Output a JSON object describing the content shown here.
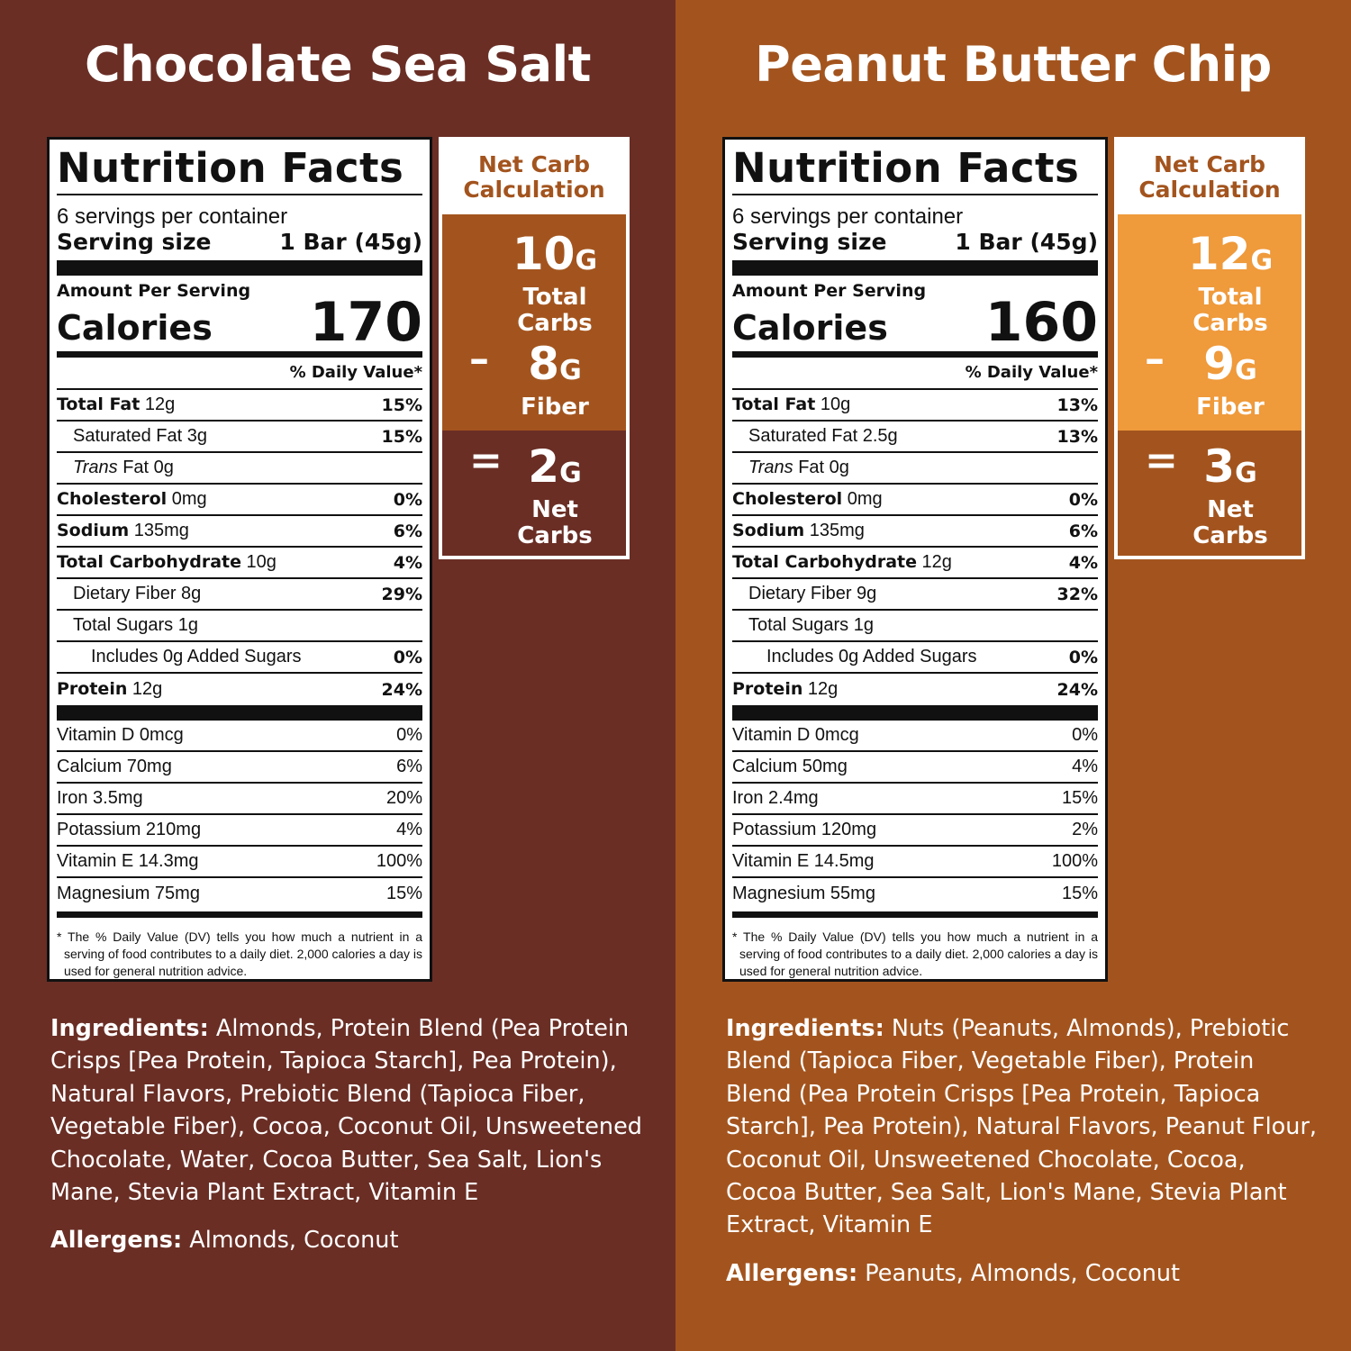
{
  "colors": {
    "dark_brown": "#6A2E25",
    "medium_brown": "#A3541E",
    "orange": "#EF9A3B"
  },
  "products": [
    {
      "name": "Chocolate Sea Salt",
      "bg": "#6A2E25",
      "label": {
        "title": "Nutrition Facts",
        "servings": "6 servings per container",
        "serving_size_label": "Serving size",
        "serving_size": "1 Bar (45g)",
        "amount_per_serving": "Amount Per Serving",
        "calories_label": "Calories",
        "calories": "170",
        "dv_header": "% Daily Value*",
        "rows": [
          {
            "bold": "Total Fat",
            "text": "12g",
            "dv": "15%",
            "indent": 0
          },
          {
            "bold": "",
            "text": "Saturated Fat 3g",
            "dv": "15%",
            "indent": 1
          },
          {
            "bold": "",
            "italic": "Trans",
            "text": "Fat 0g",
            "dv": "",
            "indent": 1
          },
          {
            "bold": "Cholesterol",
            "text": "0mg",
            "dv": "0%",
            "indent": 0
          },
          {
            "bold": "Sodium",
            "text": "135mg",
            "dv": "6%",
            "indent": 0
          },
          {
            "bold": "Total Carbohydrate",
            "text": "10g",
            "dv": "4%",
            "indent": 0
          },
          {
            "bold": "",
            "text": "Dietary Fiber 8g",
            "dv": "29%",
            "indent": 1
          },
          {
            "bold": "",
            "text": "Total Sugars 1g",
            "dv": "",
            "indent": 1
          },
          {
            "bold": "",
            "text": "Includes 0g Added Sugars",
            "dv": "0%",
            "indent": 2
          },
          {
            "bold": "Protein",
            "text": "12g",
            "dv": "24%",
            "indent": 0
          }
        ],
        "vitamins": [
          {
            "text": "Vitamin D 0mcg",
            "dv": "0%"
          },
          {
            "text": "Calcium 70mg",
            "dv": "6%"
          },
          {
            "text": "Iron 3.5mg",
            "dv": "20%"
          },
          {
            "text": "Potassium 210mg",
            "dv": "4%"
          },
          {
            "text": "Vitamin E 14.3mg",
            "dv": "100%"
          },
          {
            "text": "Magnesium 75mg",
            "dv": "15%"
          }
        ],
        "footnote": "* The % Daily Value (DV) tells you how much a nutrient in a serving of food contributes to a daily diet. 2,000 calories a day is used for general nutrition advice."
      },
      "net_carb": {
        "heading": "Net Carb Calculation",
        "heading_color": "#A3541E",
        "top_color": "#A3541E",
        "bottom_color": "#6A2E25",
        "total": "10",
        "unit": "G",
        "total_label": "Total Carbs",
        "minus": "–",
        "fiber": "8",
        "fiber_label": "Fiber",
        "equals": "=",
        "net": "2",
        "net_label": "Net Carbs"
      },
      "ingredients_label": "Ingredients:",
      "ingredients": "Almonds, Protein Blend (Pea Protein Crisps [Pea Protein, Tapioca Starch], Pea Protein), Natural Flavors, Prebiotic Blend (Tapioca Fiber, Vegetable Fiber), Cocoa, Coconut Oil, Unsweetened Chocolate, Water, Cocoa Butter, Sea Salt, Lion's Mane, Stevia Plant Extract, Vitamin E",
      "allergens_label": "Allergens:",
      "allergens": "Almonds, Coconut"
    },
    {
      "name": "Peanut Butter Chip",
      "bg": "#A3541E",
      "label": {
        "title": "Nutrition Facts",
        "servings": "6 servings per container",
        "serving_size_label": "Serving size",
        "serving_size": "1 Bar (45g)",
        "amount_per_serving": "Amount Per Serving",
        "calories_label": "Calories",
        "calories": "160",
        "dv_header": "% Daily Value*",
        "rows": [
          {
            "bold": "Total Fat",
            "text": "10g",
            "dv": "13%",
            "indent": 0
          },
          {
            "bold": "",
            "text": "Saturated Fat 2.5g",
            "dv": "13%",
            "indent": 1
          },
          {
            "bold": "",
            "italic": "Trans",
            "text": "Fat 0g",
            "dv": "",
            "indent": 1
          },
          {
            "bold": "Cholesterol",
            "text": "0mg",
            "dv": "0%",
            "indent": 0
          },
          {
            "bold": "Sodium",
            "text": "135mg",
            "dv": "6%",
            "indent": 0
          },
          {
            "bold": "Total Carbohydrate",
            "text": "12g",
            "dv": "4%",
            "indent": 0
          },
          {
            "bold": "",
            "text": "Dietary Fiber 9g",
            "dv": "32%",
            "indent": 1
          },
          {
            "bold": "",
            "text": "Total Sugars 1g",
            "dv": "",
            "indent": 1
          },
          {
            "bold": "",
            "text": "Includes 0g Added Sugars",
            "dv": "0%",
            "indent": 2
          },
          {
            "bold": "Protein",
            "text": "12g",
            "dv": "24%",
            "indent": 0
          }
        ],
        "vitamins": [
          {
            "text": "Vitamin D 0mcg",
            "dv": "0%"
          },
          {
            "text": "Calcium 50mg",
            "dv": "4%"
          },
          {
            "text": "Iron 2.4mg",
            "dv": "15%"
          },
          {
            "text": "Potassium 120mg",
            "dv": "2%"
          },
          {
            "text": "Vitamin E 14.5mg",
            "dv": "100%"
          },
          {
            "text": "Magnesium 55mg",
            "dv": "15%"
          }
        ],
        "footnote": "* The % Daily Value (DV) tells you how much a nutrient in a serving of food contributes to a daily diet. 2,000 calories a day is used for general nutrition advice."
      },
      "net_carb": {
        "heading": "Net Carb Calculation",
        "heading_color": "#A3541E",
        "top_color": "#EF9A3B",
        "bottom_color": "#A3541E",
        "total": "12",
        "unit": "G",
        "total_label": "Total Carbs",
        "minus": "–",
        "fiber": "9",
        "fiber_label": "Fiber",
        "equals": "=",
        "net": "3",
        "net_label": "Net Carbs"
      },
      "ingredients_label": "Ingredients:",
      "ingredients": "Nuts (Peanuts, Almonds), Prebiotic Blend (Tapioca Fiber, Vegetable Fiber), Protein Blend (Pea Protein Crisps [Pea Protein, Tapioca Starch], Pea Protein), Natural Flavors, Peanut Flour, Coconut Oil, Unsweetened Chocolate, Cocoa, Cocoa Butter, Sea Salt, Lion's Mane, Stevia Plant Extract, Vitamin E",
      "allergens_label": "Allergens:",
      "allergens": "Peanuts, Almonds, Coconut"
    }
  ]
}
